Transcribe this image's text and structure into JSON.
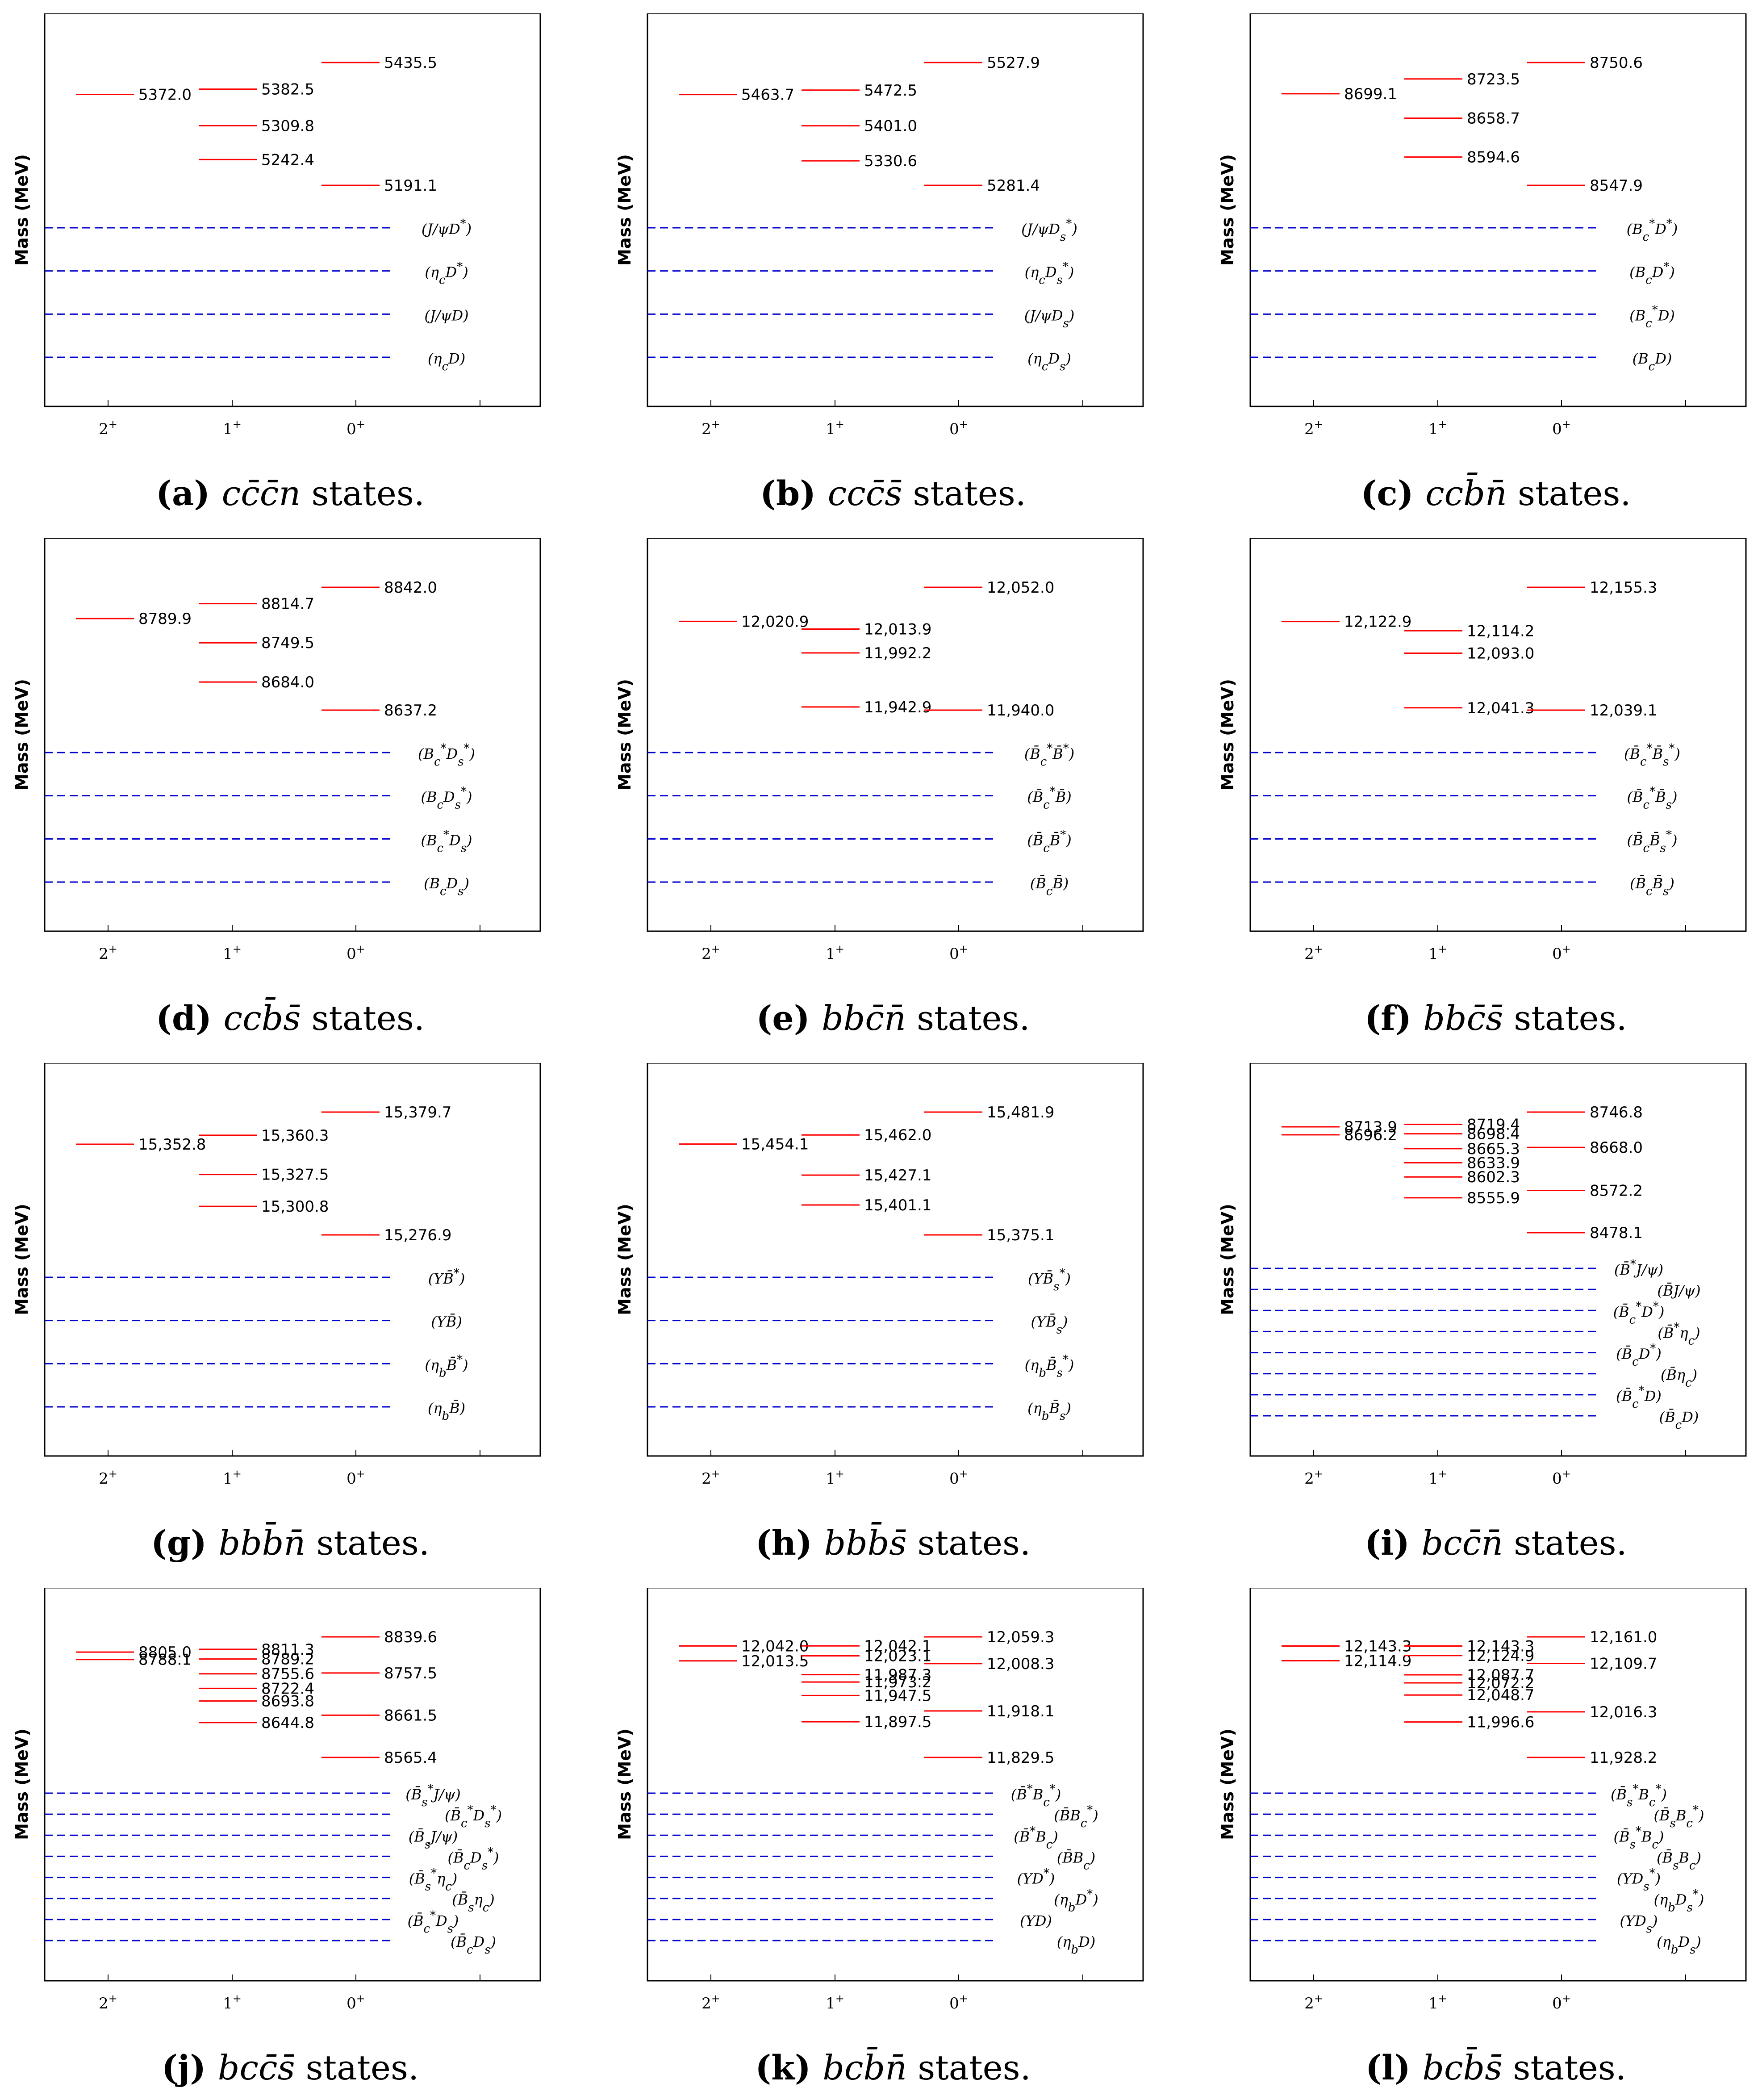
{
  "chart_data": [
    {
      "type": "level-diagram",
      "panel": "a",
      "caption_formula": "cc̄c̄n",
      "caption_tail": "states.",
      "ylabel": "Mass (MeV)",
      "categories": [
        "2+",
        "1+",
        "0+"
      ],
      "levels": [
        {
          "jp": "2+",
          "label": "5372.0"
        },
        {
          "jp": "1+",
          "label": "5382.5"
        },
        {
          "jp": "1+",
          "label": "5309.8"
        },
        {
          "jp": "1+",
          "label": "5242.4"
        },
        {
          "jp": "0+",
          "label": "5435.5"
        },
        {
          "jp": "0+",
          "label": "5191.1"
        }
      ],
      "thresholds": [
        {
          "label": "(J/ψD*)"
        },
        {
          "label": "(ηcD*)"
        },
        {
          "label": "(J/ψD)"
        },
        {
          "label": "(ηcD)"
        }
      ]
    },
    {
      "type": "level-diagram",
      "panel": "b",
      "caption_formula": "ccc̄s̄",
      "caption_tail": "states.",
      "ylabel": "Mass (MeV)",
      "categories": [
        "2+",
        "1+",
        "0+"
      ],
      "levels": [
        {
          "jp": "2+",
          "label": "5463.7"
        },
        {
          "jp": "1+",
          "label": "5472.5"
        },
        {
          "jp": "1+",
          "label": "5401.0"
        },
        {
          "jp": "1+",
          "label": "5330.6"
        },
        {
          "jp": "0+",
          "label": "5527.9"
        },
        {
          "jp": "0+",
          "label": "5281.4"
        }
      ],
      "thresholds": [
        {
          "label": "(J/ψDs*)"
        },
        {
          "label": "(ηcDs*)"
        },
        {
          "label": "(J/ψDs)"
        },
        {
          "label": "(ηcDs)"
        }
      ]
    },
    {
      "type": "level-diagram",
      "panel": "c",
      "caption_formula": "ccb̄n̄",
      "caption_tail": "states.",
      "ylabel": "Mass (MeV)",
      "categories": [
        "2+",
        "1+",
        "0+"
      ],
      "levels": [
        {
          "jp": "2+",
          "label": "8699.1"
        },
        {
          "jp": "1+",
          "label": "8723.5"
        },
        {
          "jp": "1+",
          "label": "8658.7"
        },
        {
          "jp": "1+",
          "label": "8594.6"
        },
        {
          "jp": "0+",
          "label": "8750.6"
        },
        {
          "jp": "0+",
          "label": "8547.9"
        }
      ],
      "thresholds": [
        {
          "label": "(Bc*D*)"
        },
        {
          "label": "(BcD*)"
        },
        {
          "label": "(Bc*D)"
        },
        {
          "label": "(BcD)"
        }
      ]
    },
    {
      "type": "level-diagram",
      "panel": "d",
      "caption_formula": "ccb̄s̄",
      "caption_tail": "states.",
      "ylabel": "Mass (MeV)",
      "categories": [
        "2+",
        "1+",
        "0+"
      ],
      "levels": [
        {
          "jp": "2+",
          "label": "8789.9"
        },
        {
          "jp": "1+",
          "label": "8814.7"
        },
        {
          "jp": "1+",
          "label": "8749.5"
        },
        {
          "jp": "1+",
          "label": "8684.0"
        },
        {
          "jp": "0+",
          "label": "8842.0"
        },
        {
          "jp": "0+",
          "label": "8637.2"
        }
      ],
      "thresholds": [
        {
          "label": "(Bc*Ds*)"
        },
        {
          "label": "(BcDs*)"
        },
        {
          "label": "(Bc*Ds)"
        },
        {
          "label": "(BcDs)"
        }
      ]
    },
    {
      "type": "level-diagram",
      "panel": "e",
      "caption_formula": "bbc̄n̄",
      "caption_tail": "states.",
      "ylabel": "Mass (MeV)",
      "categories": [
        "2+",
        "1+",
        "0+"
      ],
      "levels": [
        {
          "jp": "2+",
          "label": "12,020.9"
        },
        {
          "jp": "1+",
          "label": "12,013.9"
        },
        {
          "jp": "1+",
          "label": "11,992.2"
        },
        {
          "jp": "1+",
          "label": "11,942.9"
        },
        {
          "jp": "0+",
          "label": "12,052.0"
        },
        {
          "jp": "0+",
          "label": "11,940.0"
        }
      ],
      "thresholds": [
        {
          "label": "(B̄c*B̄*)"
        },
        {
          "label": "(B̄c*B̄)"
        },
        {
          "label": "(B̄cB̄*)"
        },
        {
          "label": "(B̄cB̄)"
        }
      ]
    },
    {
      "type": "level-diagram",
      "panel": "f",
      "caption_formula": "bbc̄s̄",
      "caption_tail": "states.",
      "ylabel": "Mass (MeV)",
      "categories": [
        "2+",
        "1+",
        "0+"
      ],
      "levels": [
        {
          "jp": "2+",
          "label": "12,122.9"
        },
        {
          "jp": "1+",
          "label": "12,114.2"
        },
        {
          "jp": "1+",
          "label": "12,093.0"
        },
        {
          "jp": "1+",
          "label": "12,041.3"
        },
        {
          "jp": "0+",
          "label": "12,155.3"
        },
        {
          "jp": "0+",
          "label": "12,039.1"
        }
      ],
      "thresholds": [
        {
          "label": "(B̄c*B̄s*)"
        },
        {
          "label": "(B̄c*B̄s)"
        },
        {
          "label": "(B̄cB̄s*)"
        },
        {
          "label": "(B̄cB̄s)"
        }
      ]
    },
    {
      "type": "level-diagram",
      "panel": "g",
      "caption_formula": "bbb̄n̄",
      "caption_tail": "states.",
      "ylabel": "Mass (MeV)",
      "categories": [
        "2+",
        "1+",
        "0+"
      ],
      "levels": [
        {
          "jp": "2+",
          "label": "15,352.8"
        },
        {
          "jp": "1+",
          "label": "15,360.3"
        },
        {
          "jp": "1+",
          "label": "15,327.5"
        },
        {
          "jp": "1+",
          "label": "15,300.8"
        },
        {
          "jp": "0+",
          "label": "15,379.7"
        },
        {
          "jp": "0+",
          "label": "15,276.9"
        }
      ],
      "thresholds": [
        {
          "label": "(ΥB̄*)"
        },
        {
          "label": "(ΥB̄)"
        },
        {
          "label": "(ηbB̄*)"
        },
        {
          "label": "(ηbB̄)"
        }
      ]
    },
    {
      "type": "level-diagram",
      "panel": "h",
      "caption_formula": "bbb̄s̄",
      "caption_tail": "states.",
      "ylabel": "Mass (MeV)",
      "categories": [
        "2+",
        "1+",
        "0+"
      ],
      "levels": [
        {
          "jp": "2+",
          "label": "15,454.1"
        },
        {
          "jp": "1+",
          "label": "15,462.0"
        },
        {
          "jp": "1+",
          "label": "15,427.1"
        },
        {
          "jp": "1+",
          "label": "15,401.1"
        },
        {
          "jp": "0+",
          "label": "15,481.9"
        },
        {
          "jp": "0+",
          "label": "15,375.1"
        }
      ],
      "thresholds": [
        {
          "label": "(ΥB̄s*)"
        },
        {
          "label": "(ΥB̄s)"
        },
        {
          "label": "(ηbB̄s*)"
        },
        {
          "label": "(ηbB̄s)"
        }
      ]
    },
    {
      "type": "level-diagram",
      "panel": "i",
      "caption_formula": "bcc̄n̄",
      "caption_tail": "states.",
      "ylabel": "Mass (MeV)",
      "categories": [
        "2+",
        "1+",
        "0+"
      ],
      "levels": [
        {
          "jp": "2+",
          "label": "8713.9"
        },
        {
          "jp": "2+",
          "label": "8696.2"
        },
        {
          "jp": "1+",
          "label": "8719.4"
        },
        {
          "jp": "1+",
          "label": "8698.4"
        },
        {
          "jp": "1+",
          "label": "8665.3"
        },
        {
          "jp": "1+",
          "label": "8633.9"
        },
        {
          "jp": "1+",
          "label": "8602.3"
        },
        {
          "jp": "1+",
          "label": "8555.9"
        },
        {
          "jp": "0+",
          "label": "8746.8"
        },
        {
          "jp": "0+",
          "label": "8668.0"
        },
        {
          "jp": "0+",
          "label": "8572.2"
        },
        {
          "jp": "0+",
          "label": "8478.1"
        }
      ],
      "thresholds": [
        {
          "label": "(B̄*J/ψ)"
        },
        {
          "label": "(B̄J/ψ)"
        },
        {
          "label": "(B̄c*D*)"
        },
        {
          "label": "(B̄*ηc)"
        },
        {
          "label": "(B̄cD*)"
        },
        {
          "label": "(B̄ηc)"
        },
        {
          "label": "(B̄c*D)"
        },
        {
          "label": "(B̄cD)"
        }
      ]
    },
    {
      "type": "level-diagram",
      "panel": "j",
      "caption_formula": "bcc̄s̄",
      "caption_tail": "states.",
      "ylabel": "Mass (MeV)",
      "categories": [
        "2+",
        "1+",
        "0+"
      ],
      "levels": [
        {
          "jp": "2+",
          "label": "8805.0"
        },
        {
          "jp": "2+",
          "label": "8788.1"
        },
        {
          "jp": "1+",
          "label": "8811.3"
        },
        {
          "jp": "1+",
          "label": "8789.2"
        },
        {
          "jp": "1+",
          "label": "8755.6"
        },
        {
          "jp": "1+",
          "label": "8722.4"
        },
        {
          "jp": "1+",
          "label": "8693.8"
        },
        {
          "jp": "1+",
          "label": "8644.8"
        },
        {
          "jp": "0+",
          "label": "8839.6"
        },
        {
          "jp": "0+",
          "label": "8757.5"
        },
        {
          "jp": "0+",
          "label": "8661.5"
        },
        {
          "jp": "0+",
          "label": "8565.4"
        }
      ],
      "thresholds": [
        {
          "label": "(B̄s*J/ψ)"
        },
        {
          "label": "(B̄c*Ds*)"
        },
        {
          "label": "(B̄sJ/ψ)"
        },
        {
          "label": "(B̄cDs*)"
        },
        {
          "label": "(B̄s*ηc)"
        },
        {
          "label": "(B̄sηc)"
        },
        {
          "label": "(B̄c*Ds)"
        },
        {
          "label": "(B̄cDs)"
        }
      ]
    },
    {
      "type": "level-diagram",
      "panel": "k",
      "caption_formula": "bcb̄n̄",
      "caption_tail": "states.",
      "ylabel": "Mass (MeV)",
      "categories": [
        "2+",
        "1+",
        "0+"
      ],
      "levels": [
        {
          "jp": "2+",
          "label": "12,042.0"
        },
        {
          "jp": "2+",
          "label": "12,013.5"
        },
        {
          "jp": "1+",
          "label": "12,042.1"
        },
        {
          "jp": "1+",
          "label": "12,023.1"
        },
        {
          "jp": "1+",
          "label": "11,987.3"
        },
        {
          "jp": "1+",
          "label": "11,973.2"
        },
        {
          "jp": "1+",
          "label": "11,947.5"
        },
        {
          "jp": "1+",
          "label": "11,897.5"
        },
        {
          "jp": "0+",
          "label": "12,059.3"
        },
        {
          "jp": "0+",
          "label": "12,008.3"
        },
        {
          "jp": "0+",
          "label": "11,918.1"
        },
        {
          "jp": "0+",
          "label": "11,829.5"
        }
      ],
      "thresholds": [
        {
          "label": "(B̄*Bc*)"
        },
        {
          "label": "(B̄Bc*)"
        },
        {
          "label": "(B̄*Bc)"
        },
        {
          "label": "(B̄Bc)"
        },
        {
          "label": "(ΥD*)"
        },
        {
          "label": "(ηbD*)"
        },
        {
          "label": "(ΥD)"
        },
        {
          "label": "(ηbD)"
        }
      ]
    },
    {
      "type": "level-diagram",
      "panel": "l",
      "caption_formula": "bcb̄s̄",
      "caption_tail": "states.",
      "ylabel": "Mass (MeV)",
      "categories": [
        "2+",
        "1+",
        "0+"
      ],
      "levels": [
        {
          "jp": "2+",
          "label": "12,143.3"
        },
        {
          "jp": "2+",
          "label": "12,114.9"
        },
        {
          "jp": "1+",
          "label": "12,143.3"
        },
        {
          "jp": "1+",
          "label": "12,124.9"
        },
        {
          "jp": "1+",
          "label": "12,087.7"
        },
        {
          "jp": "1+",
          "label": "12,072.2"
        },
        {
          "jp": "1+",
          "label": "12,048.7"
        },
        {
          "jp": "1+",
          "label": "11,996.6"
        },
        {
          "jp": "0+",
          "label": "12,161.0"
        },
        {
          "jp": "0+",
          "label": "12,109.7"
        },
        {
          "jp": "0+",
          "label": "12,016.3"
        },
        {
          "jp": "0+",
          "label": "11,928.2"
        }
      ],
      "thresholds": [
        {
          "label": "(B̄s*Bc*)"
        },
        {
          "label": "(B̄sBc*)"
        },
        {
          "label": "(B̄s*Bc)"
        },
        {
          "label": "(B̄sBc)"
        },
        {
          "label": "(ΥDs*)"
        },
        {
          "label": "(ηbDs*)"
        },
        {
          "label": "(ΥDs)"
        },
        {
          "label": "(ηbDs)"
        }
      ]
    }
  ],
  "colors": {
    "level": "#ff0000",
    "threshold": "#0000cc",
    "frame": "#000000"
  }
}
